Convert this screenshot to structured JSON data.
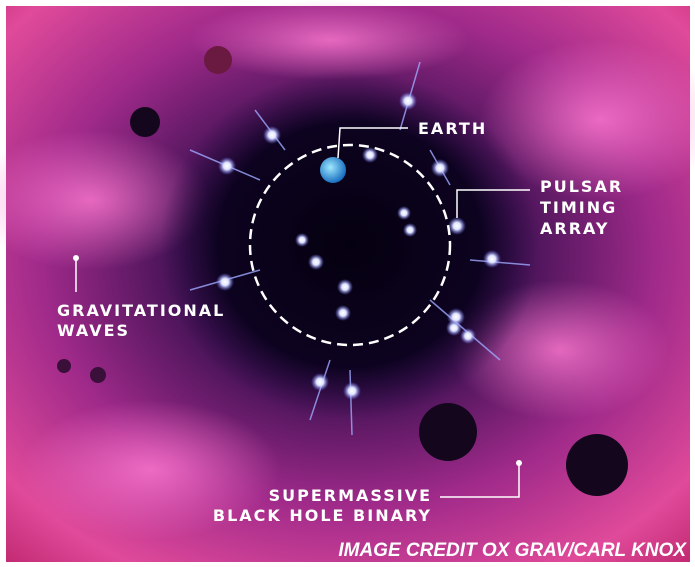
{
  "labels": {
    "earth": "EARTH",
    "pulsar_timing_array": [
      "PULSAR",
      "TIMING",
      "ARRAY"
    ],
    "gravitational_waves": [
      "GRAVITATIONAL",
      "WAVES"
    ],
    "black_hole_binary": [
      "SUPERMASSIVE",
      "BLACK HOLE BINARY"
    ]
  },
  "credit": "IMAGE CREDIT OX GRAV/CARL KNOX"
}
